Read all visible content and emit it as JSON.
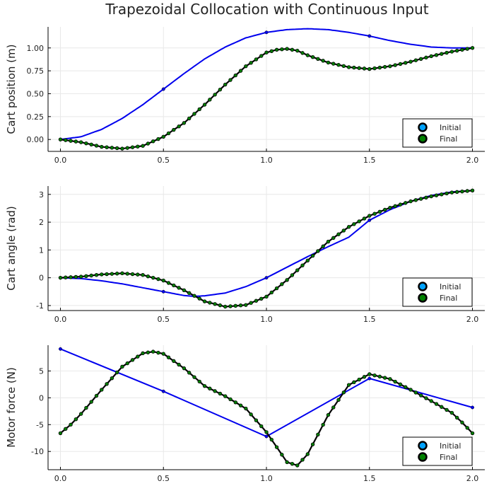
{
  "title": "Trapezoidal Collocation with Continuous Input",
  "colors": {
    "initial_line": "#0000ee",
    "initial_marker": "#00a2ff",
    "final_line": "#000000",
    "final_marker": "#008000",
    "grid": "#e8e8e8"
  },
  "legend": {
    "initial": "Initial",
    "final": "Final",
    "placement": "bottom-right"
  },
  "chart_data": [
    {
      "type": "line",
      "ylabel": "Cart position (m)",
      "xlabel": "",
      "xlim": [
        -0.06,
        2.06
      ],
      "ylim": [
        -0.13,
        1.23
      ],
      "xticks": [
        0,
        0.5,
        1,
        1.5,
        2
      ],
      "xtick_labels": [
        "0.0",
        "0.5",
        "1.0",
        "1.5",
        "2.0"
      ],
      "yticks": [
        0,
        0.25,
        0.5,
        0.75,
        1
      ],
      "ytick_labels": [
        "0.00",
        "0.25",
        "0.50",
        "0.75",
        "1.00"
      ],
      "grid": true,
      "series": [
        {
          "name": "Initial",
          "line": [
            [
              0,
              0
            ],
            [
              0.1,
              0.03
            ],
            [
              0.2,
              0.11
            ],
            [
              0.3,
              0.23
            ],
            [
              0.4,
              0.38
            ],
            [
              0.5,
              0.55
            ],
            [
              0.6,
              0.72
            ],
            [
              0.7,
              0.88
            ],
            [
              0.8,
              1.01
            ],
            [
              0.9,
              1.11
            ],
            [
              1.0,
              1.17
            ],
            [
              1.1,
              1.2
            ],
            [
              1.2,
              1.21
            ],
            [
              1.3,
              1.2
            ],
            [
              1.4,
              1.17
            ],
            [
              1.5,
              1.13
            ],
            [
              1.6,
              1.08
            ],
            [
              1.7,
              1.04
            ],
            [
              1.8,
              1.01
            ],
            [
              1.9,
              1.0
            ],
            [
              2.0,
              1.0
            ]
          ],
          "markers": [
            [
              0,
              0
            ],
            [
              0.5,
              0.55
            ],
            [
              1.0,
              1.17
            ],
            [
              1.5,
              1.13
            ],
            [
              2.0,
              1.0
            ]
          ]
        },
        {
          "name": "Final",
          "line": [
            [
              0,
              0
            ],
            [
              0.1,
              -0.03
            ],
            [
              0.2,
              -0.08
            ],
            [
              0.3,
              -0.1
            ],
            [
              0.4,
              -0.07
            ],
            [
              0.5,
              0.03
            ],
            [
              0.6,
              0.18
            ],
            [
              0.7,
              0.38
            ],
            [
              0.8,
              0.6
            ],
            [
              0.9,
              0.8
            ],
            [
              1.0,
              0.95
            ],
            [
              1.05,
              0.98
            ],
            [
              1.1,
              0.99
            ],
            [
              1.15,
              0.97
            ],
            [
              1.2,
              0.92
            ],
            [
              1.3,
              0.84
            ],
            [
              1.4,
              0.79
            ],
            [
              1.5,
              0.77
            ],
            [
              1.6,
              0.8
            ],
            [
              1.7,
              0.85
            ],
            [
              1.8,
              0.91
            ],
            [
              1.9,
              0.96
            ],
            [
              2.0,
              1.0
            ]
          ],
          "marker_count": 81
        }
      ]
    },
    {
      "type": "line",
      "ylabel": "Cart angle (rad)",
      "xlabel": "",
      "xlim": [
        -0.06,
        2.06
      ],
      "ylim": [
        -1.18,
        3.3
      ],
      "xticks": [
        0,
        0.5,
        1,
        1.5,
        2
      ],
      "xtick_labels": [
        "0.0",
        "0.5",
        "1.0",
        "1.5",
        "2.0"
      ],
      "yticks": [
        -1,
        0,
        1,
        2,
        3
      ],
      "ytick_labels": [
        "-1",
        "0",
        "1",
        "2",
        "3"
      ],
      "grid": true,
      "series": [
        {
          "name": "Initial",
          "line": [
            [
              0,
              0
            ],
            [
              0.1,
              -0.03
            ],
            [
              0.2,
              -0.11
            ],
            [
              0.3,
              -0.22
            ],
            [
              0.4,
              -0.36
            ],
            [
              0.5,
              -0.5
            ],
            [
              0.6,
              -0.64
            ],
            [
              0.65,
              -0.67
            ],
            [
              0.7,
              -0.65
            ],
            [
              0.8,
              -0.55
            ],
            [
              0.9,
              -0.32
            ],
            [
              1.0,
              0.0
            ],
            [
              1.1,
              0.38
            ],
            [
              1.2,
              0.76
            ],
            [
              1.3,
              1.12
            ],
            [
              1.4,
              1.46
            ],
            [
              1.5,
              2.07
            ],
            [
              1.6,
              2.45
            ],
            [
              1.7,
              2.75
            ],
            [
              1.8,
              2.96
            ],
            [
              1.9,
              3.09
            ],
            [
              2.0,
              3.14
            ]
          ],
          "markers": [
            [
              0,
              0
            ],
            [
              0.5,
              -0.5
            ],
            [
              1.0,
              0.0
            ],
            [
              1.5,
              2.07
            ],
            [
              2.0,
              3.14
            ]
          ]
        },
        {
          "name": "Final",
          "line": [
            [
              0,
              0
            ],
            [
              0.1,
              0.04
            ],
            [
              0.2,
              0.12
            ],
            [
              0.3,
              0.16
            ],
            [
              0.4,
              0.1
            ],
            [
              0.5,
              -0.1
            ],
            [
              0.6,
              -0.45
            ],
            [
              0.7,
              -0.85
            ],
            [
              0.8,
              -1.04
            ],
            [
              0.9,
              -0.98
            ],
            [
              1.0,
              -0.68
            ],
            [
              1.1,
              -0.08
            ],
            [
              1.2,
              0.62
            ],
            [
              1.3,
              1.3
            ],
            [
              1.4,
              1.83
            ],
            [
              1.5,
              2.23
            ],
            [
              1.6,
              2.52
            ],
            [
              1.7,
              2.75
            ],
            [
              1.8,
              2.93
            ],
            [
              1.9,
              3.07
            ],
            [
              2.0,
              3.14
            ]
          ],
          "marker_count": 81
        }
      ]
    },
    {
      "type": "line",
      "ylabel": "Motor force (N)",
      "xlabel": "",
      "xlim": [
        -0.06,
        2.06
      ],
      "ylim": [
        -13.4,
        9.8
      ],
      "xticks": [
        0,
        0.5,
        1,
        1.5,
        2
      ],
      "xtick_labels": [
        "0.0",
        "0.5",
        "1.0",
        "1.5",
        "2.0"
      ],
      "yticks": [
        -10,
        -5,
        0,
        5
      ],
      "ytick_labels": [
        "-10",
        "-5",
        "0",
        "5"
      ],
      "grid": true,
      "series": [
        {
          "name": "Initial",
          "line": [
            [
              0,
              9.1
            ],
            [
              0.5,
              1.2
            ],
            [
              1.0,
              -7.2
            ],
            [
              1.5,
              3.6
            ],
            [
              2.0,
              -1.8
            ]
          ],
          "markers": [
            [
              0,
              9.1
            ],
            [
              0.5,
              1.2
            ],
            [
              1.0,
              -7.2
            ],
            [
              1.5,
              3.6
            ],
            [
              2.0,
              -1.8
            ]
          ]
        },
        {
          "name": "Final",
          "line": [
            [
              0,
              -6.6
            ],
            [
              0.05,
              -5.0
            ],
            [
              0.1,
              -3.0
            ],
            [
              0.2,
              1.5
            ],
            [
              0.3,
              5.8
            ],
            [
              0.4,
              8.3
            ],
            [
              0.45,
              8.6
            ],
            [
              0.5,
              8.2
            ],
            [
              0.6,
              5.5
            ],
            [
              0.7,
              2.2
            ],
            [
              0.8,
              0.3
            ],
            [
              0.9,
              -2.0
            ],
            [
              1.0,
              -6.4
            ],
            [
              1.1,
              -12.0
            ],
            [
              1.15,
              -12.6
            ],
            [
              1.2,
              -10.5
            ],
            [
              1.3,
              -3.2
            ],
            [
              1.4,
              2.4
            ],
            [
              1.5,
              4.4
            ],
            [
              1.6,
              3.5
            ],
            [
              1.7,
              1.5
            ],
            [
              1.8,
              -0.6
            ],
            [
              1.9,
              -2.8
            ],
            [
              1.95,
              -4.6
            ],
            [
              2.0,
              -6.6
            ]
          ],
          "marker_count": 81
        }
      ]
    }
  ]
}
